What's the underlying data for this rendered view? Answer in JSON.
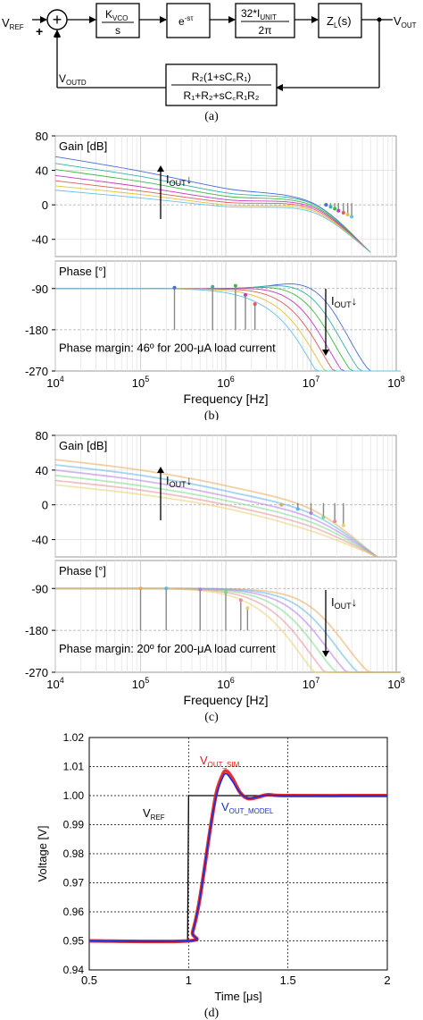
{
  "block_diagram": {
    "input_label": "V",
    "input_sub": "REF",
    "plus_sign": "+",
    "minus_sign": "−",
    "summer_symbol": "+",
    "kvco_num": "K",
    "kvco_num_sub": "VCO",
    "kvco_den": "s",
    "delay_base": "e",
    "delay_exp": "-sτ",
    "iunit_num_a": "32*I",
    "iunit_num_sub": "UNIT",
    "iunit_den": "2π",
    "zl_label": "Z",
    "zl_sub": "L",
    "zl_arg": "(s)",
    "output_label": "V",
    "output_sub": "OUT",
    "feedback_label": "V",
    "feedback_sub": "OUTD",
    "fb_num": "R₂(1+sC꜀R₁)",
    "fb_den": "R₁+R₂+sC꜀R₁R₂",
    "caption": "(a)"
  },
  "panel_b": {
    "gain_title": "Gain [dB]",
    "phase_title": "Phase [°]",
    "iout_label": "I",
    "iout_sub": "OUT",
    "margin_text": "Phase margin: 46º for 200-μA load current",
    "x_label": "Frequency [Hz]",
    "caption": "(b)"
  },
  "panel_c": {
    "gain_title": "Gain [dB]",
    "phase_title": "Phase [°]",
    "iout_label": "I",
    "iout_sub": "OUT",
    "margin_text": "Phase margin: 20º for 200-μA load current",
    "x_label": "Frequency [Hz]",
    "caption": "(c)"
  },
  "panel_d": {
    "y_label": "Voltage [V]",
    "x_label": "Time [μs]",
    "sim_label": "V",
    "sim_sub": "OUT_SIM",
    "model_label": "V",
    "model_sub": "OUT_MODEL",
    "ref_label": "V",
    "ref_sub": "REF",
    "caption": "(d)"
  },
  "chart_data": [
    {
      "type": "line",
      "title": "",
      "ylabel": "Gain [dB]",
      "xlabel": "Frequency [Hz]",
      "xscale": "log",
      "xlim": [
        10000,
        100000000
      ],
      "ylim": [
        -60,
        80
      ],
      "x_ticks": [
        "10^4",
        "10^5",
        "10^6",
        "10^7",
        "10^8"
      ],
      "y_ticks": [
        "80",
        "40",
        "0",
        "-40"
      ],
      "grid": true,
      "colors": [
        "#4a6cd4",
        "#36b0a8",
        "#44b844",
        "#c43ac4",
        "#e05a5a",
        "#e3c23a",
        "#66c0e6"
      ],
      "series": [
        {
          "x": [
            10000,
            100000,
            1000000,
            10000000,
            50000000
          ],
          "values": [
            56,
            39,
            19,
            3,
            -55
          ]
        },
        {
          "x": [
            10000,
            100000,
            1000000,
            10000000,
            50000000
          ],
          "values": [
            48,
            33,
            14,
            2,
            -55
          ]
        },
        {
          "x": [
            10000,
            100000,
            1000000,
            10000000,
            50000000
          ],
          "values": [
            41,
            27,
            10,
            0,
            -55
          ]
        },
        {
          "x": [
            10000,
            100000,
            1000000,
            10000000,
            50000000
          ],
          "values": [
            34,
            21,
            6,
            -2,
            -55
          ]
        },
        {
          "x": [
            10000,
            100000,
            1000000,
            10000000,
            50000000
          ],
          "values": [
            28,
            16,
            3,
            -4,
            -55
          ]
        },
        {
          "x": [
            10000,
            100000,
            1000000,
            10000000,
            50000000
          ],
          "values": [
            22,
            12,
            0,
            -6,
            -55
          ]
        },
        {
          "x": [
            10000,
            100000,
            1000000,
            10000000,
            50000000
          ],
          "values": [
            17,
            8,
            -2,
            -8,
            -55
          ]
        }
      ],
      "crossover_points_hz": [
        15000000,
        17000000,
        19000000,
        21000000,
        24000000,
        27000000,
        30000000
      ]
    },
    {
      "type": "line",
      "title": "",
      "ylabel": "Phase [°]",
      "xlabel": "Frequency [Hz]",
      "xscale": "log",
      "xlim": [
        10000,
        100000000
      ],
      "ylim": [
        -270,
        -30
      ],
      "y_ticks": [
        "-90",
        "-180",
        "-270"
      ],
      "grid": true,
      "annotation": "Phase margin: 46º for 200-μA load current",
      "marker_points": [
        {
          "x": 250000,
          "y": -88
        },
        {
          "x": 700000,
          "y": -86
        },
        {
          "x": 1300000,
          "y": -84
        },
        {
          "x": 1700000,
          "y": -104
        },
        {
          "x": 2200000,
          "y": -124
        }
      ]
    },
    {
      "type": "line",
      "title": "",
      "ylabel": "Gain [dB]",
      "xlabel": "Frequency [Hz]",
      "xscale": "log",
      "xlim": [
        10000,
        100000000
      ],
      "ylim": [
        -60,
        80
      ],
      "x_ticks": [
        "10^4",
        "10^5",
        "10^6",
        "10^7",
        "10^8"
      ],
      "y_ticks": [
        "80",
        "40",
        "0",
        "-40"
      ],
      "grid": true,
      "colors": [
        "#e8a85a",
        "#5ab4e8",
        "#b47ae0",
        "#7ad88a",
        "#e89098",
        "#e8d070",
        "#8ec8e8"
      ],
      "series": [
        {
          "x": [
            10000,
            100000,
            1000000,
            10000000,
            60000000
          ],
          "values": [
            52,
            40,
            22,
            -5,
            -60
          ]
        },
        {
          "x": [
            10000,
            100000,
            1000000,
            10000000,
            60000000
          ],
          "values": [
            46,
            34,
            16,
            -10,
            -60
          ]
        },
        {
          "x": [
            10000,
            100000,
            1000000,
            10000000,
            60000000
          ],
          "values": [
            40,
            28,
            10,
            -15,
            -60
          ]
        },
        {
          "x": [
            10000,
            100000,
            1000000,
            10000000,
            60000000
          ],
          "values": [
            34,
            22,
            5,
            -20,
            -60
          ]
        },
        {
          "x": [
            10000,
            100000,
            1000000,
            10000000,
            60000000
          ],
          "values": [
            28,
            17,
            0,
            -25,
            -60
          ]
        },
        {
          "x": [
            10000,
            100000,
            1000000,
            10000000,
            60000000
          ],
          "values": [
            23,
            12,
            -4,
            -30,
            -60
          ]
        }
      ],
      "crossover_points_hz": [
        4500000,
        7000000,
        10000000,
        14000000,
        19000000,
        24000000
      ]
    },
    {
      "type": "line",
      "title": "",
      "ylabel": "Phase [°]",
      "xlabel": "Frequency [Hz]",
      "xscale": "log",
      "xlim": [
        10000,
        100000000
      ],
      "ylim": [
        -270,
        -30
      ],
      "y_ticks": [
        "-90",
        "-180",
        "-270"
      ],
      "grid": true,
      "annotation": "Phase margin: 20º for 200-μA load current",
      "marker_points": [
        {
          "x": 100000,
          "y": -90
        },
        {
          "x": 200000,
          "y": -90
        },
        {
          "x": 500000,
          "y": -92
        },
        {
          "x": 1000000,
          "y": -98
        },
        {
          "x": 1500000,
          "y": -115
        },
        {
          "x": 1800000,
          "y": -132
        }
      ]
    },
    {
      "type": "line",
      "title": "",
      "xlabel": "Time [μs]",
      "ylabel": "Voltage [V]",
      "xlim": [
        0.5,
        2
      ],
      "ylim": [
        0.94,
        1.02
      ],
      "x_ticks": [
        "0.5",
        "1",
        "1.5",
        "2"
      ],
      "y_ticks": [
        "1.02",
        "1.01",
        "1.00",
        "0.99",
        "0.98",
        "0.97",
        "0.96",
        "0.95",
        "0.94"
      ],
      "grid": true,
      "series": [
        {
          "name": "VREF",
          "color": "#000000",
          "x": [
            0.5,
            0.995,
            1.0,
            2.0
          ],
          "values": [
            0.95,
            0.95,
            1.0,
            1.0
          ]
        },
        {
          "name": "VOUT_SIM",
          "color": "#e01a1a",
          "x": [
            0.5,
            1.0,
            1.02,
            1.05,
            1.08,
            1.11,
            1.14,
            1.17,
            1.19,
            1.22,
            1.26,
            1.3,
            1.35,
            1.4,
            1.5,
            2.0
          ],
          "values": [
            0.95,
            0.95,
            0.953,
            0.962,
            0.975,
            0.989,
            1.001,
            1.007,
            1.0085,
            1.006,
            1.001,
            0.999,
            0.9995,
            1.0003,
            1.0,
            1.0
          ]
        },
        {
          "name": "VOUT_MODEL",
          "color": "#1a2ee0",
          "x": [
            0.5,
            1.0,
            1.02,
            1.05,
            1.08,
            1.11,
            1.14,
            1.17,
            1.19,
            1.22,
            1.26,
            1.3,
            1.35,
            1.4,
            1.5,
            2.0
          ],
          "values": [
            0.95,
            0.95,
            0.953,
            0.962,
            0.975,
            0.989,
            1.0,
            1.006,
            1.0075,
            1.005,
            1.001,
            0.999,
            0.9996,
            1.0002,
            1.0,
            1.0
          ]
        }
      ]
    }
  ]
}
